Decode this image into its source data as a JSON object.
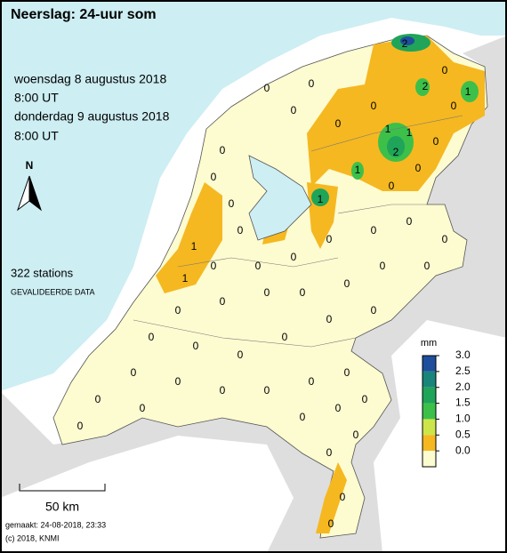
{
  "header": {
    "title": "Neerslag: 24-uur som"
  },
  "period": {
    "start_day": "woensdag 8 augustus 2018",
    "start_time": "8:00 UT",
    "end_day": "donderdag 9 augustus 2018",
    "end_time": "8:00 UT"
  },
  "compass": "N",
  "stations_count": "322 stations",
  "data_status": "GEVALIDEERDE DATA",
  "scale_bar": "50 km",
  "footer": {
    "made": "gemaakt: 24-08-2018, 23:33",
    "copyright": "(c) 2018, KNMI"
  },
  "legend": {
    "unit": "mm",
    "ticks": [
      {
        "value": 3,
        "label": "3.0"
      },
      {
        "value": 2.5,
        "label": "2.5"
      },
      {
        "value": 2,
        "label": "2.0"
      },
      {
        "value": 1.5,
        "label": "1.5"
      },
      {
        "value": 1,
        "label": "1.0"
      },
      {
        "value": 0.5,
        "label": "0.5"
      },
      {
        "value": 0,
        "label": "0.0"
      }
    ],
    "colors": [
      "#1f4e9c",
      "#19857a",
      "#1fa45a",
      "#3cc04a",
      "#cce64a",
      "#f5b820",
      "#fdfbd0"
    ]
  },
  "stations": [
    2,
    2,
    1,
    1,
    2,
    1,
    1,
    1,
    1,
    1,
    0,
    0,
    0,
    0,
    0,
    0,
    0,
    0,
    0,
    0,
    0,
    0,
    0,
    0,
    0,
    0,
    0,
    0,
    0,
    0,
    0,
    0,
    0,
    0,
    0,
    0,
    0,
    0,
    0,
    0,
    0,
    0,
    0,
    0,
    0,
    0,
    0,
    0,
    0,
    0,
    0,
    0,
    0,
    0,
    0,
    0,
    0,
    0,
    0,
    0
  ]
}
